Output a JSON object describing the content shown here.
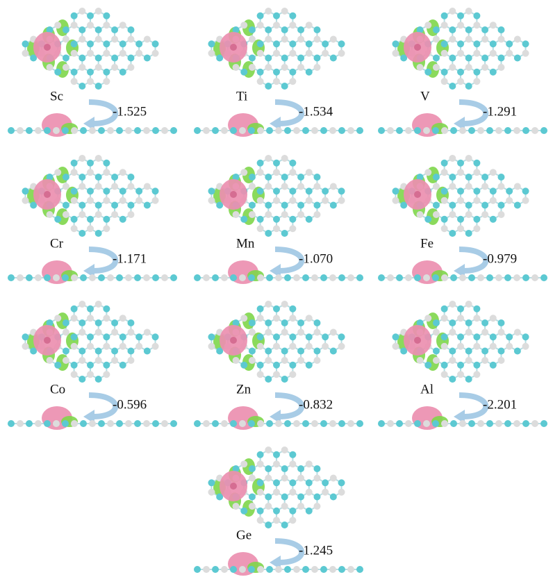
{
  "panels": [
    {
      "element": "Sc",
      "charge": "-1.525"
    },
    {
      "element": "Ti",
      "charge": "-1.534"
    },
    {
      "element": "V",
      "charge": "-1.291"
    },
    {
      "element": "Cr",
      "charge": "-1.171"
    },
    {
      "element": "Mn",
      "charge": "-1.070"
    },
    {
      "element": "Fe",
      "charge": "-0.979"
    },
    {
      "element": "Co",
      "charge": "-0.596"
    },
    {
      "element": "Zn",
      "charge": "-0.832"
    },
    {
      "element": "Al",
      "charge": "-2.201"
    },
    {
      "element": "Ge",
      "charge": "-1.245"
    }
  ]
}
